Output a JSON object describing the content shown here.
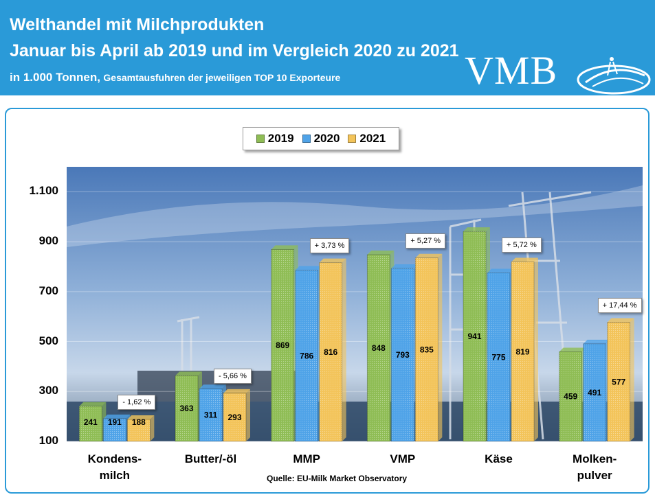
{
  "header": {
    "line1": "Welthandel mit Milchprodukten",
    "line2": "Januar bis April ab 2019 und im Vergleich 2020 zu 2021",
    "line3_unit": "in 1.000 Tonnen,",
    "line3_rest": "Gesamtausfuhren der jeweiligen TOP 10 Exporteure",
    "logo": "VMB"
  },
  "colors": {
    "header_bg": "#2a9ad8",
    "s2019": "#8fbd55",
    "s2020": "#4fa3e8",
    "s2021": "#f3c45a"
  },
  "source": "Quelle: EU-Milk  Market Observatory",
  "chart_data": {
    "type": "bar",
    "title": "Welthandel mit Milchprodukten",
    "subtitle": "Januar bis April ab 2019 und im Vergleich 2020 zu 2021",
    "ylabel": "in 1.000 Tonnen",
    "ylim": [
      100,
      1200
    ],
    "yticks": [
      "100",
      "300",
      "500",
      "700",
      "900",
      "1.100"
    ],
    "ytick_values": [
      100,
      300,
      500,
      700,
      900,
      1100
    ],
    "categories": [
      "Kondens-\nmilch",
      "Butter/-öl",
      "MMP",
      "VMP",
      "Käse",
      "Molken-\npulver"
    ],
    "series": [
      {
        "name": "2019",
        "values": [
          241,
          363,
          869,
          848,
          941,
          459
        ]
      },
      {
        "name": "2020",
        "values": [
          191,
          311,
          786,
          793,
          775,
          491
        ]
      },
      {
        "name": "2021",
        "values": [
          188,
          293,
          816,
          835,
          819,
          577
        ]
      }
    ],
    "change_labels": [
      "- 1,62 %",
      "- 5,66 %",
      "+ 3,73 %",
      "+ 5,27 %",
      "+ 5,72 %",
      "+ 17,44 %"
    ],
    "legend_position": "top-center"
  }
}
